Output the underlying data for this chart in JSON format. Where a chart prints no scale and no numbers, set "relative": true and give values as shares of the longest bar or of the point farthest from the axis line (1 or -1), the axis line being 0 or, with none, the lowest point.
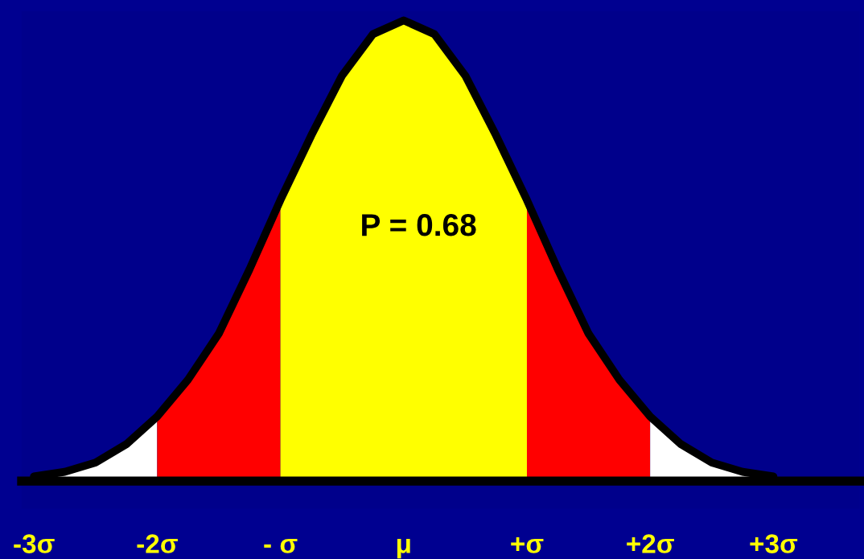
{
  "chart_data": {
    "type": "area",
    "relative": true,
    "annotations": [
      "P = 0.68"
    ],
    "xlim": [
      -3.1,
      3.7
    ],
    "xticks": [
      {
        "value": -3,
        "label": "-3σ"
      },
      {
        "value": -2,
        "label": "-2σ"
      },
      {
        "value": -1,
        "label": "- σ"
      },
      {
        "value": 0,
        "label": "μ"
      },
      {
        "value": 1,
        "label": "+σ"
      },
      {
        "value": 2,
        "label": "+2σ"
      },
      {
        "value": 3,
        "label": "+3σ"
      }
    ],
    "series": [
      {
        "color": "#ffffff",
        "x": [
          -3,
          -2.75,
          -2.5,
          -2.25,
          -2
        ],
        "values": [
          0.01,
          0.02,
          0.04,
          0.08,
          0.14
        ]
      },
      {
        "color": "#ff0000",
        "x": [
          -2,
          -1.75,
          -1.5,
          -1.25,
          -1
        ],
        "values": [
          0.14,
          0.22,
          0.32,
          0.46,
          0.61
        ]
      },
      {
        "color": "#ffff00",
        "x": [
          -1,
          -0.75,
          -0.5,
          -0.25,
          0,
          0.25,
          0.5,
          0.75,
          1
        ],
        "values": [
          0.61,
          0.75,
          0.88,
          0.97,
          1,
          0.97,
          0.88,
          0.75,
          0.61
        ]
      },
      {
        "color": "#ff0000",
        "x": [
          1,
          1.25,
          1.5,
          1.75,
          2
        ],
        "values": [
          0.61,
          0.46,
          0.32,
          0.22,
          0.14
        ]
      },
      {
        "color": "#ffffff",
        "x": [
          2,
          2.25,
          2.5,
          2.75,
          3
        ],
        "values": [
          0.14,
          0.08,
          0.04,
          0.02,
          0.01
        ]
      },
      {
        "type": "line",
        "color": "#000000",
        "x": [
          -3,
          -2.75,
          -2.5,
          -2.25,
          -2,
          -1.75,
          -1.5,
          -1.25,
          -1,
          -0.75,
          -0.5,
          -0.25,
          0,
          0.25,
          0.5,
          0.75,
          1,
          1.25,
          1.5,
          1.75,
          2,
          2.25,
          2.5,
          2.75,
          3
        ],
        "values": [
          0.01,
          0.02,
          0.04,
          0.08,
          0.14,
          0.22,
          0.32,
          0.46,
          0.61,
          0.75,
          0.88,
          0.97,
          1,
          0.97,
          0.88,
          0.75,
          0.61,
          0.46,
          0.32,
          0.22,
          0.14,
          0.08,
          0.04,
          0.02,
          0.01
        ]
      }
    ]
  }
}
